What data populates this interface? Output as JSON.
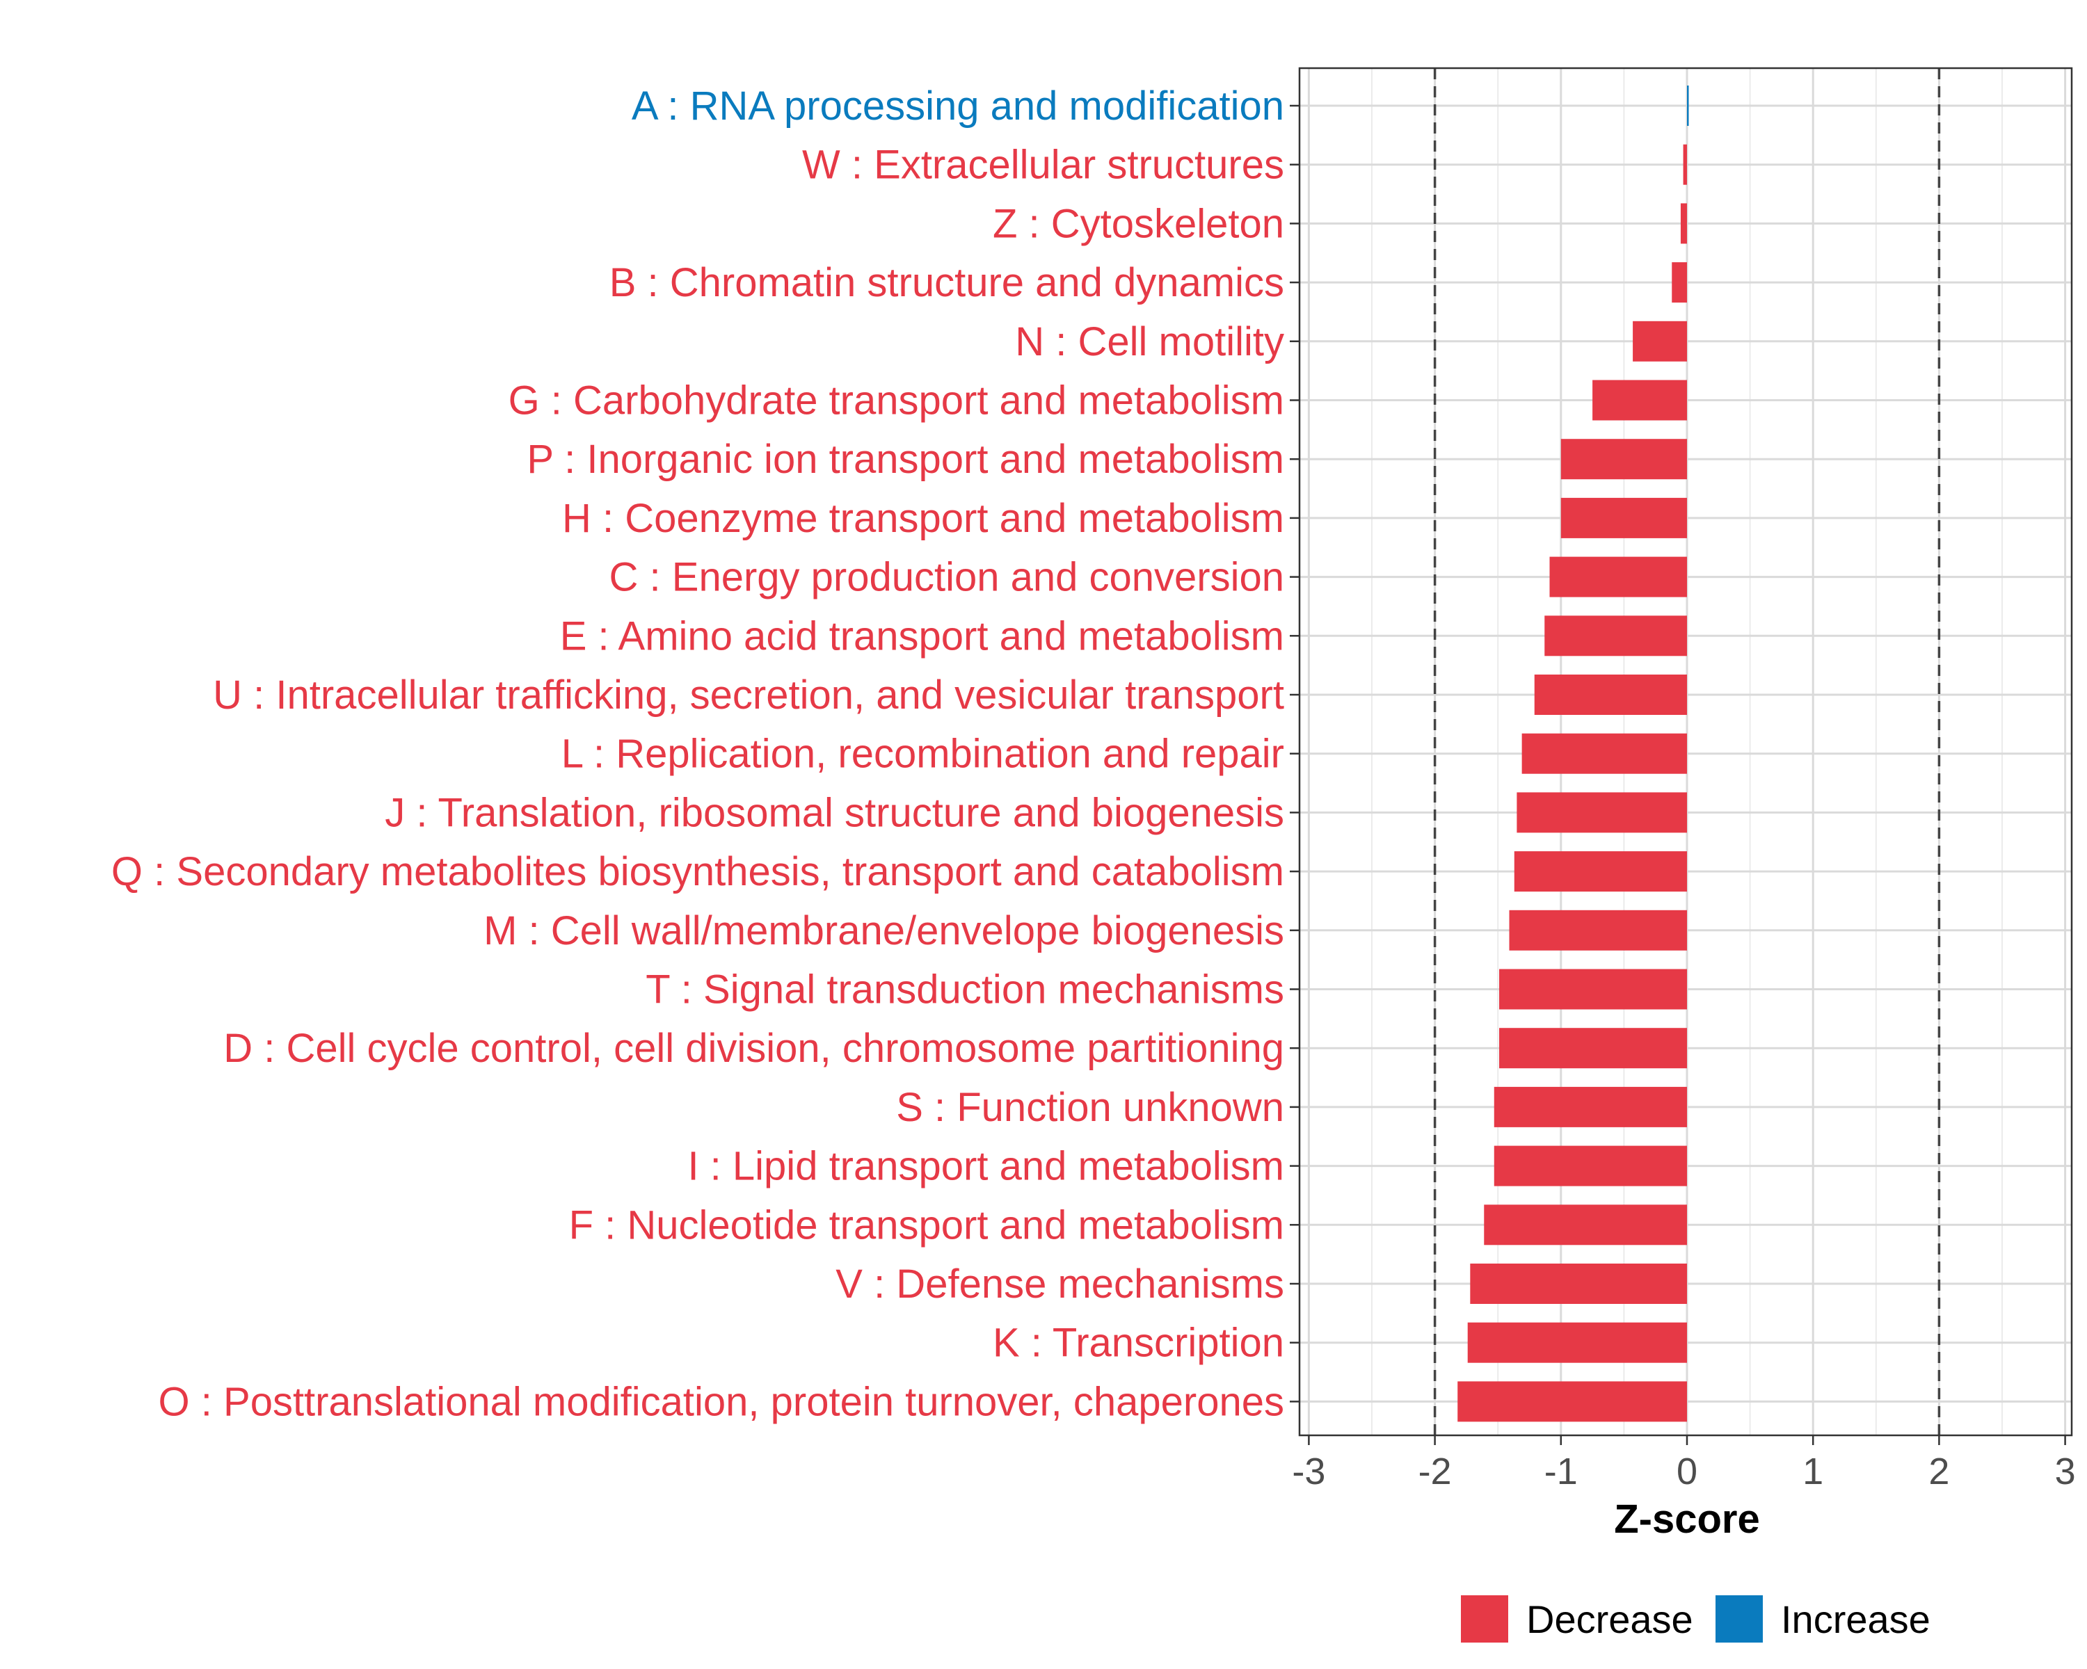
{
  "chart_data": {
    "type": "bar",
    "orientation": "horizontal",
    "title": "",
    "xlabel": "Z-score",
    "ylabel": "",
    "xlim": [
      -3.05,
      3.05
    ],
    "xticks": [
      -3,
      -2,
      -1,
      0,
      1,
      2,
      3
    ],
    "xtick_labels": [
      "-3",
      "-2",
      "-1",
      "0",
      "1",
      "2",
      "3"
    ],
    "reference_lines": [
      -2,
      2
    ],
    "grid": true,
    "categories": [
      "A : RNA processing and modification",
      "W : Extracellular structures",
      "Z : Cytoskeleton",
      "B : Chromatin structure and dynamics",
      "N : Cell motility",
      "G : Carbohydrate transport and metabolism",
      "P : Inorganic ion transport and metabolism",
      "H : Coenzyme transport and metabolism",
      "C : Energy production and conversion",
      "E : Amino acid transport and metabolism",
      "U : Intracellular trafficking, secretion, and vesicular transport",
      "L : Replication, recombination and repair",
      "J : Translation, ribosomal structure and biogenesis",
      "Q : Secondary metabolites biosynthesis, transport and catabolism",
      "M : Cell wall/membrane/envelope biogenesis",
      "T : Signal transduction mechanisms",
      "D : Cell cycle control, cell division, chromosome partitioning",
      "S : Function unknown",
      "I : Lipid transport and metabolism",
      "F : Nucleotide transport and metabolism",
      "V : Defense mechanisms",
      "K : Transcription",
      "O : Posttranslational modification, protein turnover, chaperones"
    ],
    "values": [
      0.01,
      -0.03,
      -0.05,
      -0.12,
      -0.43,
      -0.75,
      -1.0,
      -1.0,
      -1.09,
      -1.13,
      -1.21,
      -1.31,
      -1.35,
      -1.37,
      -1.41,
      -1.49,
      -1.49,
      -1.53,
      -1.53,
      -1.61,
      -1.72,
      -1.74,
      -1.82
    ],
    "direction": [
      "Increase",
      "Decrease",
      "Decrease",
      "Decrease",
      "Decrease",
      "Decrease",
      "Decrease",
      "Decrease",
      "Decrease",
      "Decrease",
      "Decrease",
      "Decrease",
      "Decrease",
      "Decrease",
      "Decrease",
      "Decrease",
      "Decrease",
      "Decrease",
      "Decrease",
      "Decrease",
      "Decrease",
      "Decrease",
      "Decrease"
    ],
    "legend": {
      "position": "bottom",
      "entries": [
        {
          "label": "Decrease",
          "color": "#E63946"
        },
        {
          "label": "Increase",
          "color": "#0A7BBE"
        }
      ]
    }
  }
}
